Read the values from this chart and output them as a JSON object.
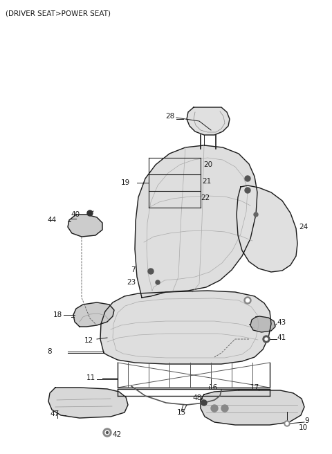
{
  "title": "(DRIVER SEAT>POWER SEAT)",
  "title_fontsize": 7.5,
  "bg_color": "#ffffff",
  "line_color": "#1a1a1a",
  "figsize": [
    4.8,
    6.56
  ],
  "dpi": 100
}
